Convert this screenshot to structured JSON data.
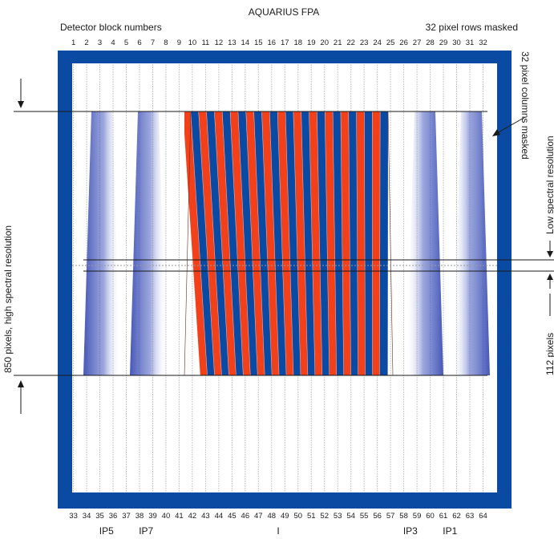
{
  "title": "AQUARIUS FPA",
  "top_left_label": "Detector block numbers",
  "top_right_label": "32 pixel rows masked",
  "right_vertical_label_1": "32 pixel columns masked",
  "right_vertical_label_2": "Low spectral resolution",
  "right_vertical_label_3": "112 pixels",
  "left_vertical_label": "850 pixels, high spectral resolution",
  "top_block_numbers": [
    "1",
    "2",
    "3",
    "4",
    "5",
    "6",
    "7",
    "8",
    "9",
    "10",
    "11",
    "12",
    "13",
    "14",
    "15",
    "16",
    "17",
    "18",
    "19",
    "20",
    "21",
    "22",
    "23",
    "24",
    "25",
    "26",
    "27",
    "28",
    "29",
    "30",
    "31",
    "32"
  ],
  "bottom_block_numbers": [
    "33",
    "34",
    "35",
    "36",
    "37",
    "38",
    "39",
    "40",
    "41",
    "42",
    "43",
    "44",
    "45",
    "46",
    "47",
    "48",
    "49",
    "50",
    "51",
    "52",
    "53",
    "54",
    "55",
    "56",
    "57",
    "58",
    "59",
    "60",
    "61",
    "62",
    "63",
    "64"
  ],
  "ip_labels": [
    {
      "text": "IP5",
      "block": 35.5
    },
    {
      "text": "IP7",
      "block": 38.5
    },
    {
      "text": "I",
      "block": 48.5
    },
    {
      "text": "IP3",
      "block": 58.5
    },
    {
      "text": "IP1",
      "block": 61.5
    }
  ],
  "colors": {
    "frame": "#0b4aa2",
    "stripe_blue": "#0b4aa2",
    "stripe_red": "#f2401b",
    "gradient": "#3d4fb3",
    "grid_line": "#c8c8c8",
    "text": "#1a1a1a"
  }
}
